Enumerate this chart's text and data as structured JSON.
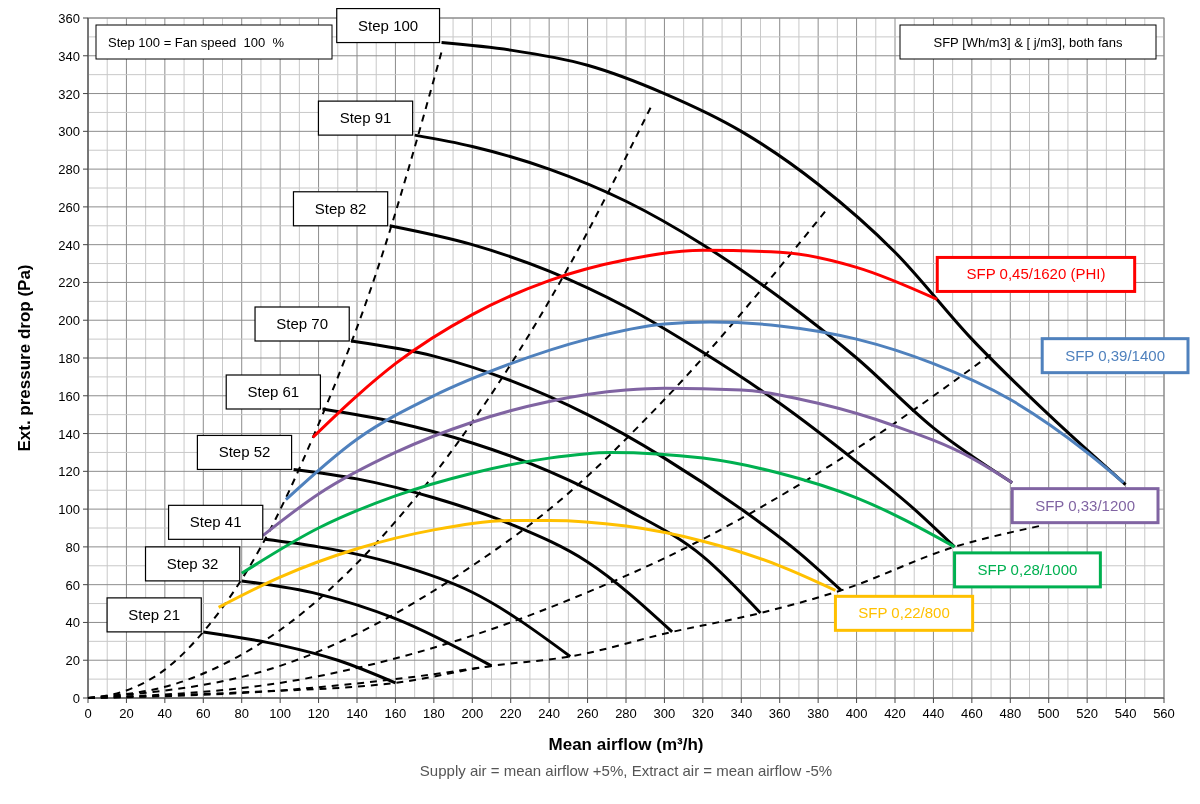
{
  "chart_data": {
    "type": "line",
    "xlabel": "Mean airflow (m³/h)",
    "ylabel": "Ext. pressure drop (Pa)",
    "annotations": [
      "Step 100 = Fan speed  100  %",
      "SFP [Wh/m3] & [ j/m3], both fans",
      "Supply air = mean airflow +5%, Extract air = mean airflow -5%"
    ],
    "xlim": [
      0,
      560
    ],
    "ylim": [
      0,
      360
    ],
    "xticks": [
      0,
      {
        "value": 10,
        "label": null
      },
      20,
      {
        "value": 30,
        "label": null
      },
      40,
      {
        "value": 50,
        "label": null
      },
      60,
      {
        "value": 70,
        "label": null
      },
      80,
      {
        "value": 90,
        "label": null
      },
      100,
      {
        "value": 110,
        "label": null
      },
      120,
      {
        "value": 130,
        "label": null
      },
      140,
      {
        "value": 150,
        "label": null
      },
      160,
      {
        "value": 170,
        "label": null
      },
      180,
      {
        "value": 190,
        "label": null
      },
      200,
      {
        "value": 210,
        "label": null
      },
      220,
      {
        "value": 230,
        "label": null
      },
      240,
      {
        "value": 250,
        "label": null
      },
      260,
      {
        "value": 270,
        "label": null
      },
      280,
      {
        "value": 290,
        "label": null
      },
      300,
      {
        "value": 310,
        "label": null
      },
      320,
      {
        "value": 330,
        "label": null
      },
      340,
      {
        "value": 350,
        "label": null
      },
      360,
      {
        "value": 370,
        "label": null
      },
      380,
      {
        "value": 390,
        "label": null
      },
      400,
      {
        "value": 410,
        "label": null
      },
      420,
      {
        "value": 430,
        "label": null
      },
      440,
      {
        "value": 450,
        "label": null
      },
      460,
      {
        "value": 470,
        "label": null
      },
      480,
      {
        "value": 490,
        "label": null
      },
      500,
      {
        "value": 510,
        "label": null
      },
      520,
      {
        "value": 530,
        "label": null
      },
      540,
      {
        "value": 550,
        "label": null
      },
      560
    ],
    "yticks": [
      0,
      {
        "value": 10,
        "label": null
      },
      20,
      {
        "value": 30,
        "label": null
      },
      40,
      {
        "value": 50,
        "label": null
      },
      60,
      {
        "value": 70,
        "label": null
      },
      80,
      {
        "value": 90,
        "label": null
      },
      100,
      {
        "value": 110,
        "label": null
      },
      120,
      {
        "value": 130,
        "label": null
      },
      140,
      {
        "value": 150,
        "label": null
      },
      160,
      {
        "value": 170,
        "label": null
      },
      180,
      {
        "value": 190,
        "label": null
      },
      200,
      {
        "value": 210,
        "label": null
      },
      220,
      {
        "value": 230,
        "label": null
      },
      240,
      {
        "value": 250,
        "label": null
      },
      260,
      {
        "value": 270,
        "label": null
      },
      280,
      {
        "value": 290,
        "label": null
      },
      300,
      {
        "value": 310,
        "label": null
      },
      320,
      {
        "value": 330,
        "label": null
      },
      340,
      {
        "value": 350,
        "label": null
      },
      360
    ],
    "grid": true,
    "series": [
      {
        "color": "#000000",
        "line_style": "dashed",
        "x": [
          0,
          20,
          40,
          60,
          90,
          120,
          150,
          184
        ],
        "values": [
          0,
          4,
          15,
          35,
          80,
          145,
          225,
          342
        ]
      },
      {
        "color": "#000000",
        "line_style": "dashed",
        "x": [
          0,
          50,
          100,
          150,
          200,
          250,
          293
        ],
        "values": [
          0,
          9,
          36,
          82,
          146,
          228,
          313
        ]
      },
      {
        "color": "#000000",
        "line_style": "dashed",
        "x": [
          0,
          100,
          200,
          245,
          300,
          384
        ],
        "values": [
          0,
          17,
          70,
          104,
          158,
          258
        ]
      },
      {
        "color": "#000000",
        "line_style": "dashed",
        "x": [
          0,
          100,
          200,
          267,
          300,
          400,
          470
        ],
        "values": [
          0,
          8,
          33,
          59,
          74,
          132,
          182
        ]
      },
      {
        "color": "#000000",
        "line_style": "dashed",
        "x": [
          0,
          100,
          160,
          210
        ],
        "values": [
          0,
          4,
          10,
          17
        ]
      },
      {
        "color": "#000000",
        "line_style": "dashed",
        "x": [
          0,
          80,
          160,
          210,
          251,
          304,
          350,
          392,
          451,
          495
        ],
        "values": [
          0,
          3,
          8,
          17,
          22,
          35,
          45,
          57,
          80,
          91
        ]
      },
      {
        "name": "Step 100",
        "color": "#000000",
        "line_style": "solid",
        "x": [
          184,
          220,
          260,
          300,
          340,
          380,
          420,
          460,
          500,
          540
        ],
        "values": [
          347,
          343,
          335,
          320,
          300,
          272,
          236,
          190,
          150,
          113
        ]
      },
      {
        "name": "Step 91",
        "color": "#000000",
        "line_style": "solid",
        "x": [
          170,
          200,
          240,
          280,
          320,
          360,
          400,
          440,
          481
        ],
        "values": [
          298,
          292,
          280,
          263,
          240,
          212,
          180,
          143,
          114
        ]
      },
      {
        "name": "Step 82",
        "color": "#000000",
        "line_style": "solid",
        "x": [
          157,
          200,
          240,
          280,
          320,
          360,
          400,
          430,
          451
        ],
        "values": [
          250,
          240,
          226,
          207,
          183,
          156,
          125,
          100,
          80
        ]
      },
      {
        "name": "Step 70",
        "color": "#000000",
        "line_style": "solid",
        "x": [
          137,
          180,
          220,
          260,
          300,
          340,
          370,
          392
        ],
        "values": [
          189,
          181,
          168,
          150,
          127,
          100,
          77,
          57
        ]
      },
      {
        "name": "Step 61",
        "color": "#000000",
        "line_style": "solid",
        "x": [
          122,
          160,
          200,
          240,
          280,
          320,
          350
        ],
        "values": [
          153,
          146,
          135,
          120,
          100,
          75,
          45
        ]
      },
      {
        "name": "Step 52",
        "color": "#000000",
        "line_style": "solid",
        "x": [
          107,
          140,
          180,
          220,
          260,
          304
        ],
        "values": [
          121,
          116,
          106,
          92,
          72,
          35
        ]
      },
      {
        "name": "Step 41",
        "color": "#000000",
        "line_style": "solid",
        "x": [
          92,
          120,
          160,
          200,
          251
        ],
        "values": [
          84,
          80,
          71,
          56,
          22
        ]
      },
      {
        "name": "Step 32",
        "color": "#000000",
        "line_style": "solid",
        "x": [
          80,
          120,
          160,
          210
        ],
        "values": [
          62,
          55,
          42,
          17
        ]
      },
      {
        "name": "Step 21",
        "color": "#000000",
        "line_style": "solid",
        "x": [
          60,
          100,
          130,
          160
        ],
        "values": [
          35,
          28,
          20,
          8
        ]
      },
      {
        "name": "SFP 0,45/1620 (PHI)",
        "color": "#ff0000",
        "line_style": "solid",
        "x": [
          117,
          140,
          160,
          200,
          240,
          280,
          320,
          360,
          400,
          442
        ],
        "values": [
          138,
          160,
          177,
          203,
          221,
          232,
          237,
          236,
          228,
          211
        ]
      },
      {
        "name": "SFP 0,39/1400",
        "color": "#4f81bd",
        "line_style": "solid",
        "x": [
          103,
          140,
          180,
          220,
          260,
          300,
          324,
          360,
          400,
          440,
          480,
          520,
          539
        ],
        "values": [
          105,
          137,
          160,
          177,
          190,
          198,
          199,
          197,
          190,
          177,
          158,
          130,
          114
        ]
      },
      {
        "name": "SFP 0,33/1200",
        "color": "#8064a2",
        "line_style": "solid",
        "x": [
          91,
          120,
          160,
          200,
          240,
          280,
          300,
          340,
          380,
          420,
          460,
          481
        ],
        "values": [
          86,
          108,
          130,
          146,
          157,
          163,
          164,
          163,
          156,
          144,
          127,
          114
        ]
      },
      {
        "name": "SFP 0,28/1000",
        "color": "#00b050",
        "line_style": "solid",
        "x": [
          80,
          120,
          160,
          200,
          240,
          272,
          320,
          360,
          400,
          451
        ],
        "values": [
          66,
          90,
          107,
          119,
          127,
          130,
          127,
          119,
          106,
          80
        ]
      },
      {
        "name": "SFP 0,22/800",
        "color": "#ffc000",
        "line_style": "solid",
        "x": [
          68,
          100,
          140,
          180,
          220,
          240,
          280,
          320,
          360,
          389
        ],
        "values": [
          48,
          64,
          79,
          89,
          94,
          94,
          91,
          83,
          70,
          57
        ]
      }
    ]
  }
}
